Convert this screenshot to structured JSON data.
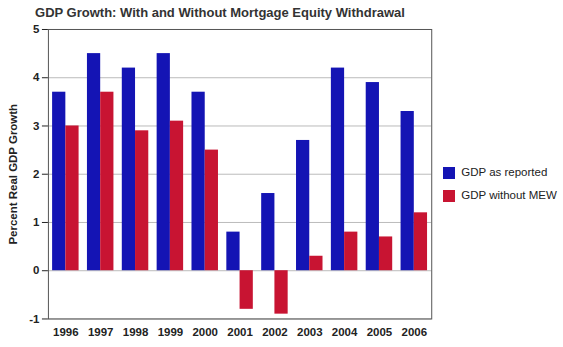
{
  "chart_data": {
    "type": "bar",
    "title": "GDP Growth: With and Without Mortgage Equity Withdrawal",
    "y_label": "Percent Real GDP Growth",
    "categories": [
      "1996",
      "1997",
      "1998",
      "1999",
      "2000",
      "2001",
      "2002",
      "2003",
      "2004",
      "2005",
      "2006"
    ],
    "series": [
      {
        "name": "GDP as reported",
        "color": "#1414b4",
        "values": [
          3.7,
          4.5,
          4.2,
          4.5,
          3.7,
          0.8,
          1.6,
          2.7,
          4.2,
          3.9,
          3.3
        ]
      },
      {
        "name": "GDP without MEW",
        "color": "#c81432",
        "values": [
          3.0,
          3.7,
          2.9,
          3.1,
          2.5,
          -0.8,
          -0.9,
          0.3,
          0.8,
          0.7,
          1.2
        ]
      }
    ],
    "ylim": [
      -1,
      5
    ],
    "yticks": [
      -1,
      0,
      1,
      2,
      3,
      4,
      5
    ],
    "grid": true,
    "legend": "right"
  }
}
